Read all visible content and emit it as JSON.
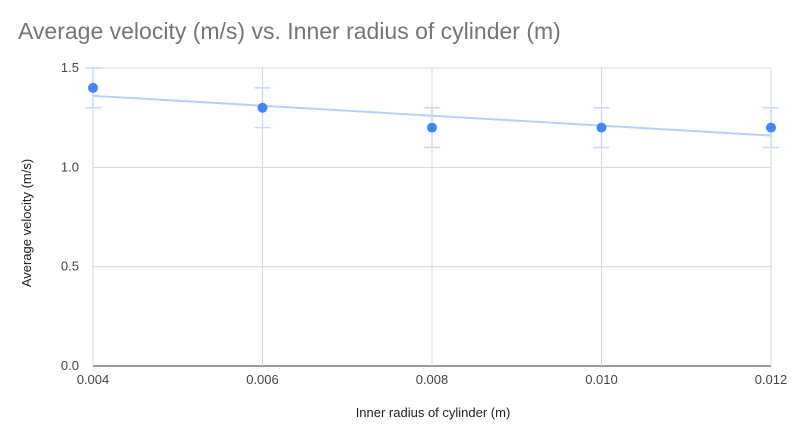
{
  "chart_data": {
    "type": "scatter",
    "title": "Average velocity (m/s) vs. Inner radius of cylinder (m)",
    "xlabel": "Inner radius of cylinder (m)",
    "ylabel": "Average velocity (m/s)",
    "xlim": [
      0.004,
      0.012
    ],
    "ylim": [
      0.0,
      1.5
    ],
    "x_ticks": [
      "0.004",
      "0.006",
      "0.008",
      "0.010",
      "0.012"
    ],
    "y_ticks": [
      "0.0",
      "0.5",
      "1.0",
      "1.5"
    ],
    "grid": true,
    "series": [
      {
        "x": [
          0.004,
          0.006,
          0.008,
          0.01,
          0.012
        ],
        "y": [
          1.4,
          1.3,
          1.2,
          1.2,
          1.2
        ],
        "error": 0.1,
        "color": "#4285f4",
        "errorbar_color": "#c6d9f7"
      }
    ],
    "trendline": {
      "type": "linear",
      "y_at_xmin": 1.36,
      "y_at_xmax": 1.16,
      "color": "#b8d0f7"
    }
  }
}
